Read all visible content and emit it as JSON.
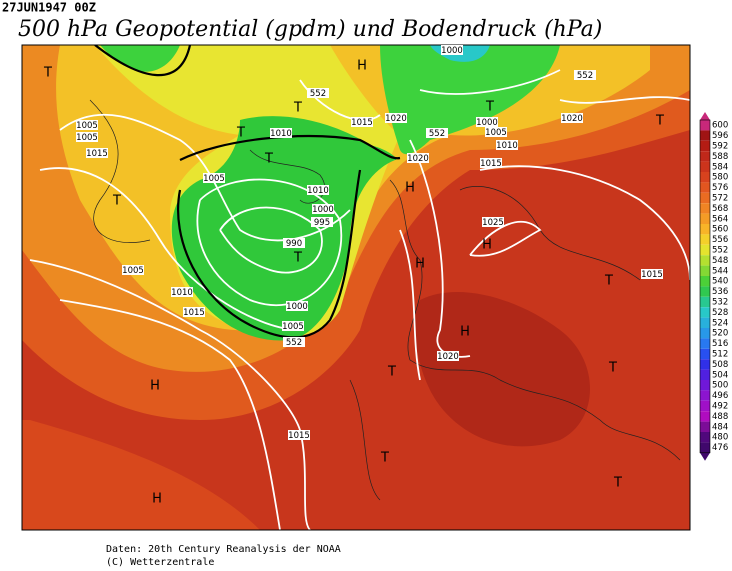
{
  "header": {
    "timestamp": "27JUN1947 00Z",
    "title": "500 hPa Geopotential (gpdm) und Bodendruck (hPa)"
  },
  "map": {
    "labels": [
      "1000",
      "552",
      "1005",
      "1005",
      "1010",
      "1015",
      "1020",
      "1000",
      "1005",
      "1020",
      "552",
      "1015",
      "1010",
      "1020",
      "1015",
      "1005",
      "1010",
      "1000",
      "995",
      "1025",
      "990",
      "1005",
      "1010",
      "1015",
      "1000",
      "1005",
      "552",
      "1015",
      "1020",
      "1015",
      "552",
      "T",
      "H",
      "T",
      "T",
      "T",
      "T",
      "T",
      "T",
      "H",
      "H",
      "T",
      "H",
      "T",
      "H",
      "T",
      "T",
      "H",
      "T",
      "T",
      "H"
    ]
  },
  "colorbar": {
    "labels": [
      "600",
      "596",
      "592",
      "588",
      "584",
      "580",
      "576",
      "572",
      "568",
      "564",
      "560",
      "556",
      "552",
      "548",
      "544",
      "540",
      "536",
      "532",
      "528",
      "524",
      "520",
      "516",
      "512",
      "508",
      "504",
      "500",
      "496",
      "492",
      "488",
      "484",
      "480",
      "476"
    ]
  },
  "footer": {
    "lines": [
      "Daten: 20th Century Reanalysis der NOAA",
      "(C) Wetterzentrale"
    ]
  }
}
